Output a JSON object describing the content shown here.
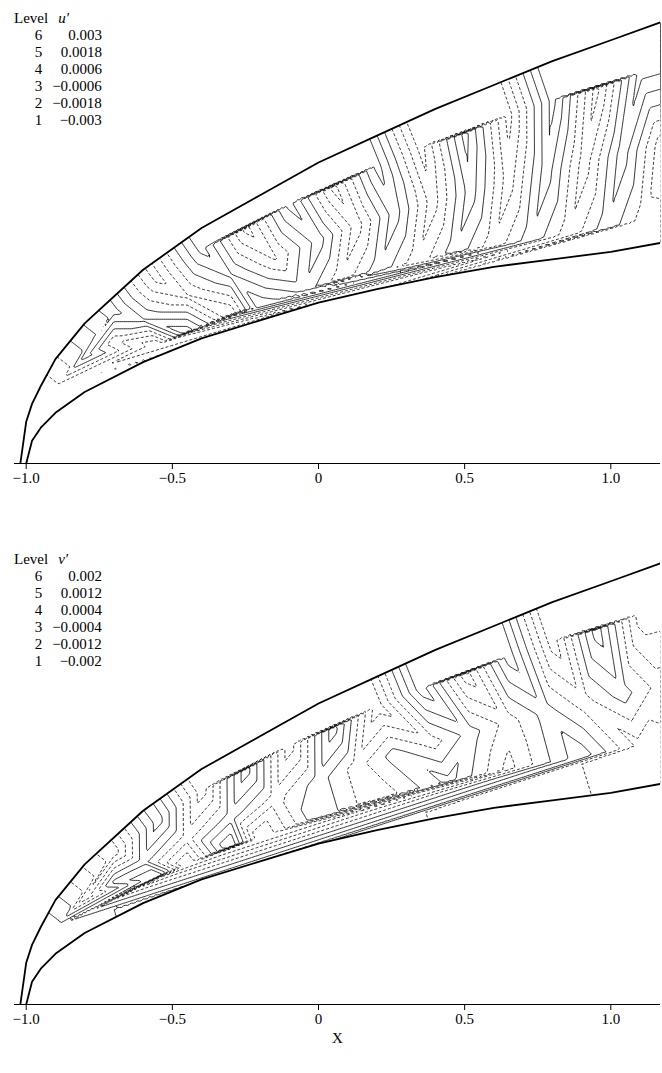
{
  "chart_data": [
    {
      "type": "contour",
      "level_header": "Level",
      "variable": "u′",
      "legend": "top-left",
      "levels": [
        {
          "level": 6,
          "value": 0.003
        },
        {
          "level": 5,
          "value": 0.0018
        },
        {
          "level": 4,
          "value": 0.0006
        },
        {
          "level": 3,
          "value": -0.0006
        },
        {
          "level": 2,
          "value": -0.0018
        },
        {
          "level": 1,
          "value": -0.003
        }
      ],
      "xlim": [
        -1.04,
        1.17
      ],
      "xticks": [
        {
          "value": -1,
          "label": "−1.0"
        },
        {
          "value": -0.5,
          "label": "−0.5"
        },
        0,
        0.5,
        {
          "value": 1,
          "label": "1.0"
        }
      ],
      "ylim": [
        0,
        1.54
      ],
      "tick_labels": "x",
      "lower_boundary": {
        "x": [
          -1,
          -0.98,
          -0.95,
          -0.9,
          -0.8,
          -0.6,
          -0.4,
          -0.2,
          0,
          0.2,
          0.4,
          0.6,
          0.8,
          1,
          1.17
        ],
        "y": [
          0,
          0.076,
          0.12,
          0.17,
          0.24,
          0.34,
          0.42,
          0.48,
          0.54,
          0.585,
          0.625,
          0.66,
          0.685,
          0.71,
          0.74
        ]
      },
      "upper_boundary": {
        "x": [
          -1.02,
          -1,
          -0.98,
          -0.95,
          -0.9,
          -0.8,
          -0.6,
          -0.4,
          -0.2,
          0,
          0.2,
          0.4,
          0.6,
          0.8,
          1,
          1.17
        ],
        "y": [
          0,
          0.14,
          0.2,
          0.26,
          0.35,
          0.47,
          0.65,
          0.79,
          0.9,
          1.01,
          1.1,
          1.19,
          1.27,
          1.35,
          1.42,
          1.48
        ]
      },
      "samples": [
        {
          "x": -0.9,
          "y": 0.26,
          "value": -0.002
        },
        {
          "x": -0.8,
          "y": 0.36,
          "value": 0.0025
        },
        {
          "x": -0.7,
          "y": 0.41,
          "value": -0.0015
        },
        {
          "x": -0.7,
          "y": 0.51,
          "value": 0.0035
        },
        {
          "x": -0.55,
          "y": 0.62,
          "value": -0.0035
        },
        {
          "x": -0.4,
          "y": 0.72,
          "value": 0.0035
        },
        {
          "x": -0.25,
          "y": 0.79,
          "value": -0.0035
        },
        {
          "x": -0.1,
          "y": 0.87,
          "value": 0.0035
        },
        {
          "x": 0.05,
          "y": 0.93,
          "value": -0.0035
        },
        {
          "x": 0.2,
          "y": 1.0,
          "value": 0.0035
        },
        {
          "x": 0.35,
          "y": 1.06,
          "value": -0.0035
        },
        {
          "x": 0.5,
          "y": 1.11,
          "value": 0.0035
        },
        {
          "x": 0.65,
          "y": 1.17,
          "value": -0.0035
        },
        {
          "x": 0.8,
          "y": 1.22,
          "value": 0.0035
        },
        {
          "x": 0.95,
          "y": 1.26,
          "value": -0.0035
        },
        {
          "x": 1.1,
          "y": 1.31,
          "value": 0.0035
        },
        {
          "x": -0.6,
          "y": 0.48,
          "value": 0.002
        },
        {
          "x": -0.45,
          "y": 0.56,
          "value": -0.002
        },
        {
          "x": -0.3,
          "y": 0.63,
          "value": 0.002
        },
        {
          "x": -0.15,
          "y": 0.69,
          "value": -0.002
        },
        {
          "x": 0,
          "y": 0.75,
          "value": 0.0025
        },
        {
          "x": 0.13,
          "y": 0.8,
          "value": -0.0025
        },
        {
          "x": 0.26,
          "y": 0.84,
          "value": 0.0025
        },
        {
          "x": 0.39,
          "y": 0.88,
          "value": -0.0025
        },
        {
          "x": 0.52,
          "y": 0.91,
          "value": 0.0025
        },
        {
          "x": 0.65,
          "y": 0.95,
          "value": -0.0025
        },
        {
          "x": 0.78,
          "y": 0.98,
          "value": 0.0025
        },
        {
          "x": 0.91,
          "y": 1.01,
          "value": -0.0025
        },
        {
          "x": 1.04,
          "y": 1.04,
          "value": 0.0025
        },
        {
          "x": 1.17,
          "y": 1.07,
          "value": -0.0025
        },
        {
          "x": -0.55,
          "y": 0.4,
          "value": -0.004
        },
        {
          "x": -0.45,
          "y": 0.44,
          "value": 0.004
        },
        {
          "x": -0.3,
          "y": 0.5,
          "value": -0.003
        },
        {
          "x": -0.2,
          "y": 0.53,
          "value": 0.004
        },
        {
          "x": -0.05,
          "y": 0.58,
          "value": 0.0015
        },
        {
          "x": 0.08,
          "y": 0.62,
          "value": -0.0015
        },
        {
          "x": 0.21,
          "y": 0.65,
          "value": 0.0015
        },
        {
          "x": 0.34,
          "y": 0.68,
          "value": -0.0015
        },
        {
          "x": 0.47,
          "y": 0.71,
          "value": 0.0015
        },
        {
          "x": 0.6,
          "y": 0.73,
          "value": -0.0015
        },
        {
          "x": 0.73,
          "y": 0.75,
          "value": 0.0015
        },
        {
          "x": 0.86,
          "y": 0.77,
          "value": -0.0015
        },
        {
          "x": 0.99,
          "y": 0.79,
          "value": 0.0015
        },
        {
          "x": 1.12,
          "y": 0.82,
          "value": -0.0015
        }
      ]
    },
    {
      "type": "contour",
      "level_header": "Level",
      "variable": "v′",
      "legend": "top-left",
      "x_label": "X",
      "levels": [
        {
          "level": 6,
          "value": 0.002
        },
        {
          "level": 5,
          "value": 0.0012
        },
        {
          "level": 4,
          "value": 0.0004
        },
        {
          "level": 3,
          "value": -0.0004
        },
        {
          "level": 2,
          "value": -0.0012
        },
        {
          "level": 1,
          "value": -0.002
        }
      ],
      "xlim": [
        -1.04,
        1.17
      ],
      "xticks": [
        {
          "value": -1,
          "label": "−1.0"
        },
        {
          "value": -0.5,
          "label": "−0.5"
        },
        0,
        0.5,
        {
          "value": 1,
          "label": "1.0"
        }
      ],
      "ylim": [
        0,
        1.54
      ],
      "tick_labels": "x",
      "lower_boundary": {
        "x": [
          -1,
          -0.98,
          -0.95,
          -0.9,
          -0.8,
          -0.6,
          -0.4,
          -0.2,
          0,
          0.2,
          0.4,
          0.6,
          0.8,
          1,
          1.17
        ],
        "y": [
          0,
          0.076,
          0.12,
          0.17,
          0.24,
          0.34,
          0.42,
          0.48,
          0.54,
          0.585,
          0.625,
          0.66,
          0.685,
          0.71,
          0.74
        ]
      },
      "upper_boundary": {
        "x": [
          -1.02,
          -1,
          -0.98,
          -0.95,
          -0.9,
          -0.8,
          -0.6,
          -0.4,
          -0.2,
          0,
          0.2,
          0.4,
          0.6,
          0.8,
          1,
          1.17
        ],
        "y": [
          0,
          0.14,
          0.2,
          0.26,
          0.35,
          0.47,
          0.65,
          0.79,
          0.9,
          1.01,
          1.1,
          1.19,
          1.27,
          1.35,
          1.42,
          1.48
        ]
      },
      "samples": [
        {
          "x": -0.9,
          "y": 0.26,
          "value": 0.0015
        },
        {
          "x": -0.8,
          "y": 0.36,
          "value": -0.002
        },
        {
          "x": -0.7,
          "y": 0.41,
          "value": 0.0015
        },
        {
          "x": -0.7,
          "y": 0.51,
          "value": -0.0025
        },
        {
          "x": -0.55,
          "y": 0.62,
          "value": 0.0025
        },
        {
          "x": -0.4,
          "y": 0.72,
          "value": -0.0025
        },
        {
          "x": -0.25,
          "y": 0.79,
          "value": 0.0025
        },
        {
          "x": -0.1,
          "y": 0.87,
          "value": -0.0025
        },
        {
          "x": 0.05,
          "y": 0.93,
          "value": 0.0025
        },
        {
          "x": 0.2,
          "y": 1.0,
          "value": -0.0025
        },
        {
          "x": 0.35,
          "y": 1.06,
          "value": 0.0025
        },
        {
          "x": 0.5,
          "y": 1.11,
          "value": -0.0025
        },
        {
          "x": 0.65,
          "y": 1.17,
          "value": 0.0025
        },
        {
          "x": 0.8,
          "y": 1.22,
          "value": -0.0025
        },
        {
          "x": 0.95,
          "y": 1.26,
          "value": 0.0025
        },
        {
          "x": 1.1,
          "y": 1.31,
          "value": -0.0025
        },
        {
          "x": -0.6,
          "y": 0.48,
          "value": 0.0008
        },
        {
          "x": -0.45,
          "y": 0.56,
          "value": -0.0008
        },
        {
          "x": -0.3,
          "y": 0.63,
          "value": 0.0008
        },
        {
          "x": -0.15,
          "y": 0.69,
          "value": -0.0008
        },
        {
          "x": 0,
          "y": 0.75,
          "value": 0.0008
        },
        {
          "x": 0.13,
          "y": 0.8,
          "value": -0.0008
        },
        {
          "x": 0.26,
          "y": 0.84,
          "value": 0.0008
        },
        {
          "x": 0.39,
          "y": 0.88,
          "value": -0.0008
        },
        {
          "x": 0.52,
          "y": 0.91,
          "value": 0.0008
        },
        {
          "x": 0.65,
          "y": 0.95,
          "value": -0.0008
        },
        {
          "x": 0.78,
          "y": 0.98,
          "value": 0.0008
        },
        {
          "x": 0.91,
          "y": 1.01,
          "value": -0.0008
        },
        {
          "x": 1.04,
          "y": 1.04,
          "value": 0.0008
        },
        {
          "x": 1.17,
          "y": 1.07,
          "value": -0.0008
        },
        {
          "x": -0.55,
          "y": 0.43,
          "value": 0.003
        },
        {
          "x": -0.45,
          "y": 0.47,
          "value": -0.003
        },
        {
          "x": -0.3,
          "y": 0.53,
          "value": 0.003
        },
        {
          "x": -0.2,
          "y": 0.56,
          "value": -0.003
        },
        {
          "x": 0,
          "y": 0.63,
          "value": 0.0012
        },
        {
          "x": 0.2,
          "y": 0.69,
          "value": -0.0012
        },
        {
          "x": 0.45,
          "y": 0.75,
          "value": 0.0015
        },
        {
          "x": 0.65,
          "y": 0.79,
          "value": -0.0015
        },
        {
          "x": 0.9,
          "y": 0.83,
          "value": 0.0018
        },
        {
          "x": 1.1,
          "y": 0.87,
          "value": -0.0015
        }
      ]
    }
  ]
}
